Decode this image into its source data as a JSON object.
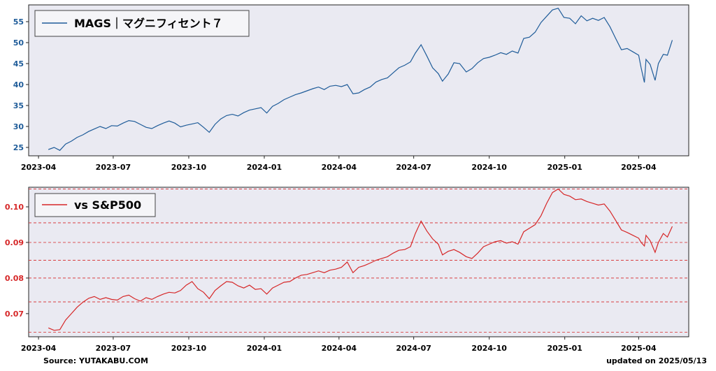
{
  "chart_data": [
    {
      "type": "line",
      "x_ticks": [
        "2023-04",
        "2023-07",
        "2023-10",
        "2024-01",
        "2024-04",
        "2024-07",
        "2024-10",
        "2025-01",
        "2025-04"
      ],
      "y_ticks": [
        25,
        30,
        35,
        40,
        45,
        50,
        55
      ],
      "ylim": [
        23,
        59
      ],
      "xlim": [
        "2023-03-20",
        "2025-06-01"
      ],
      "grid": false,
      "legend_position": "top-left",
      "series": [
        {
          "name": "MAGS｜マグニフィセント７",
          "color": "#1f5c99",
          "points": [
            [
              "2023-04-13",
              24.5
            ],
            [
              "2023-04-20",
              25.0
            ],
            [
              "2023-04-27",
              24.3
            ],
            [
              "2023-05-04",
              25.8
            ],
            [
              "2023-05-11",
              26.5
            ],
            [
              "2023-05-18",
              27.4
            ],
            [
              "2023-05-25",
              28.0
            ],
            [
              "2023-06-01",
              28.8
            ],
            [
              "2023-06-08",
              29.4
            ],
            [
              "2023-06-15",
              30.0
            ],
            [
              "2023-06-22",
              29.5
            ],
            [
              "2023-06-29",
              30.2
            ],
            [
              "2023-07-06",
              30.1
            ],
            [
              "2023-07-13",
              30.8
            ],
            [
              "2023-07-20",
              31.4
            ],
            [
              "2023-07-27",
              31.2
            ],
            [
              "2023-08-03",
              30.5
            ],
            [
              "2023-08-10",
              29.8
            ],
            [
              "2023-08-17",
              29.5
            ],
            [
              "2023-08-24",
              30.2
            ],
            [
              "2023-08-31",
              30.8
            ],
            [
              "2023-09-07",
              31.3
            ],
            [
              "2023-09-14",
              30.8
            ],
            [
              "2023-09-21",
              29.9
            ],
            [
              "2023-09-28",
              30.3
            ],
            [
              "2023-10-05",
              30.6
            ],
            [
              "2023-10-12",
              30.9
            ],
            [
              "2023-10-19",
              29.8
            ],
            [
              "2023-10-26",
              28.6
            ],
            [
              "2023-11-02",
              30.5
            ],
            [
              "2023-11-09",
              31.8
            ],
            [
              "2023-11-16",
              32.6
            ],
            [
              "2023-11-23",
              32.9
            ],
            [
              "2023-11-30",
              32.5
            ],
            [
              "2023-12-07",
              33.3
            ],
            [
              "2023-12-14",
              33.9
            ],
            [
              "2023-12-21",
              34.2
            ],
            [
              "2023-12-28",
              34.5
            ],
            [
              "2024-01-04",
              33.2
            ],
            [
              "2024-01-11",
              34.8
            ],
            [
              "2024-01-18",
              35.5
            ],
            [
              "2024-01-25",
              36.4
            ],
            [
              "2024-02-01",
              37.0
            ],
            [
              "2024-02-08",
              37.6
            ],
            [
              "2024-02-15",
              38.0
            ],
            [
              "2024-02-22",
              38.5
            ],
            [
              "2024-02-29",
              39.0
            ],
            [
              "2024-03-07",
              39.4
            ],
            [
              "2024-03-14",
              38.8
            ],
            [
              "2024-03-21",
              39.6
            ],
            [
              "2024-03-28",
              39.8
            ],
            [
              "2024-04-04",
              39.5
            ],
            [
              "2024-04-11",
              40.0
            ],
            [
              "2024-04-18",
              37.8
            ],
            [
              "2024-04-25",
              38.0
            ],
            [
              "2024-05-02",
              38.8
            ],
            [
              "2024-05-09",
              39.4
            ],
            [
              "2024-05-16",
              40.6
            ],
            [
              "2024-05-23",
              41.2
            ],
            [
              "2024-05-30",
              41.6
            ],
            [
              "2024-06-06",
              42.8
            ],
            [
              "2024-06-13",
              44.0
            ],
            [
              "2024-06-20",
              44.6
            ],
            [
              "2024-06-27",
              45.4
            ],
            [
              "2024-07-03",
              47.5
            ],
            [
              "2024-07-10",
              49.5
            ],
            [
              "2024-07-17",
              46.8
            ],
            [
              "2024-07-24",
              44.0
            ],
            [
              "2024-07-31",
              42.6
            ],
            [
              "2024-08-05",
              40.8
            ],
            [
              "2024-08-12",
              42.5
            ],
            [
              "2024-08-19",
              45.2
            ],
            [
              "2024-08-26",
              45.0
            ],
            [
              "2024-09-03",
              43.0
            ],
            [
              "2024-09-10",
              43.8
            ],
            [
              "2024-09-17",
              45.2
            ],
            [
              "2024-09-24",
              46.2
            ],
            [
              "2024-10-01",
              46.5
            ],
            [
              "2024-10-08",
              47.0
            ],
            [
              "2024-10-15",
              47.6
            ],
            [
              "2024-10-22",
              47.2
            ],
            [
              "2024-10-29",
              48.0
            ],
            [
              "2024-11-05",
              47.5
            ],
            [
              "2024-11-12",
              51.0
            ],
            [
              "2024-11-19",
              51.3
            ],
            [
              "2024-11-26",
              52.5
            ],
            [
              "2024-12-03",
              54.8
            ],
            [
              "2024-12-10",
              56.3
            ],
            [
              "2024-12-17",
              57.8
            ],
            [
              "2024-12-24",
              58.2
            ],
            [
              "2024-12-31",
              56.0
            ],
            [
              "2025-01-07",
              55.8
            ],
            [
              "2025-01-14",
              54.5
            ],
            [
              "2025-01-21",
              56.4
            ],
            [
              "2025-01-28",
              55.2
            ],
            [
              "2025-02-04",
              55.8
            ],
            [
              "2025-02-11",
              55.3
            ],
            [
              "2025-02-18",
              56.0
            ],
            [
              "2025-02-25",
              53.8
            ],
            [
              "2025-03-04",
              51.0
            ],
            [
              "2025-03-11",
              48.3
            ],
            [
              "2025-03-18",
              48.6
            ],
            [
              "2025-03-25",
              47.8
            ],
            [
              "2025-04-01",
              47.0
            ],
            [
              "2025-04-04",
              44.0
            ],
            [
              "2025-04-08",
              40.5
            ],
            [
              "2025-04-10",
              46.0
            ],
            [
              "2025-04-15",
              44.8
            ],
            [
              "2025-04-21",
              41.0
            ],
            [
              "2025-04-25",
              45.0
            ],
            [
              "2025-05-01",
              47.2
            ],
            [
              "2025-05-06",
              47.0
            ],
            [
              "2025-05-12",
              50.6
            ]
          ]
        }
      ]
    },
    {
      "type": "line",
      "x_ticks": [
        "2023-04",
        "2023-07",
        "2023-10",
        "2024-01",
        "2024-04",
        "2024-07",
        "2024-10",
        "2025-01",
        "2025-04"
      ],
      "y_ticks": [
        0.07,
        0.08,
        0.09,
        0.1
      ],
      "ylim": [
        0.0635,
        0.1055
      ],
      "xlim": [
        "2023-03-20",
        "2025-06-01"
      ],
      "reference_lines": [
        0.0648,
        0.0733,
        0.08,
        0.085,
        0.09,
        0.0955,
        0.105
      ],
      "reference_line_color": "#d62728",
      "legend_position": "top-left",
      "series": [
        {
          "name": "vs S&P500",
          "color": "#d62728",
          "points": [
            [
              "2023-04-13",
              0.066
            ],
            [
              "2023-04-20",
              0.0653
            ],
            [
              "2023-04-27",
              0.0655
            ],
            [
              "2023-05-04",
              0.0682
            ],
            [
              "2023-05-11",
              0.07
            ],
            [
              "2023-05-18",
              0.0718
            ],
            [
              "2023-05-25",
              0.0732
            ],
            [
              "2023-06-01",
              0.0743
            ],
            [
              "2023-06-08",
              0.0748
            ],
            [
              "2023-06-15",
              0.074
            ],
            [
              "2023-06-22",
              0.0745
            ],
            [
              "2023-06-29",
              0.074
            ],
            [
              "2023-07-06",
              0.0738
            ],
            [
              "2023-07-13",
              0.0748
            ],
            [
              "2023-07-20",
              0.0752
            ],
            [
              "2023-07-27",
              0.0742
            ],
            [
              "2023-08-03",
              0.0735
            ],
            [
              "2023-08-10",
              0.0745
            ],
            [
              "2023-08-17",
              0.074
            ],
            [
              "2023-08-24",
              0.0748
            ],
            [
              "2023-08-31",
              0.0755
            ],
            [
              "2023-09-07",
              0.076
            ],
            [
              "2023-09-14",
              0.0758
            ],
            [
              "2023-09-21",
              0.0765
            ],
            [
              "2023-09-28",
              0.078
            ],
            [
              "2023-10-05",
              0.079
            ],
            [
              "2023-10-12",
              0.077
            ],
            [
              "2023-10-19",
              0.076
            ],
            [
              "2023-10-26",
              0.0742
            ],
            [
              "2023-11-02",
              0.0765
            ],
            [
              "2023-11-09",
              0.0778
            ],
            [
              "2023-11-16",
              0.079
            ],
            [
              "2023-11-23",
              0.0788
            ],
            [
              "2023-11-30",
              0.0778
            ],
            [
              "2023-12-07",
              0.0772
            ],
            [
              "2023-12-14",
              0.078
            ],
            [
              "2023-12-21",
              0.0768
            ],
            [
              "2023-12-28",
              0.077
            ],
            [
              "2024-01-04",
              0.0755
            ],
            [
              "2024-01-11",
              0.0772
            ],
            [
              "2024-01-18",
              0.078
            ],
            [
              "2024-01-25",
              0.0788
            ],
            [
              "2024-02-01",
              0.079
            ],
            [
              "2024-02-08",
              0.08
            ],
            [
              "2024-02-15",
              0.0808
            ],
            [
              "2024-02-22",
              0.081
            ],
            [
              "2024-02-29",
              0.0815
            ],
            [
              "2024-03-07",
              0.082
            ],
            [
              "2024-03-14",
              0.0815
            ],
            [
              "2024-03-21",
              0.0822
            ],
            [
              "2024-03-28",
              0.0825
            ],
            [
              "2024-04-04",
              0.083
            ],
            [
              "2024-04-11",
              0.0845
            ],
            [
              "2024-04-18",
              0.0815
            ],
            [
              "2024-04-25",
              0.083
            ],
            [
              "2024-05-02",
              0.0835
            ],
            [
              "2024-05-09",
              0.0842
            ],
            [
              "2024-05-16",
              0.085
            ],
            [
              "2024-05-23",
              0.0855
            ],
            [
              "2024-05-30",
              0.086
            ],
            [
              "2024-06-06",
              0.087
            ],
            [
              "2024-06-13",
              0.0878
            ],
            [
              "2024-06-20",
              0.088
            ],
            [
              "2024-06-27",
              0.0888
            ],
            [
              "2024-07-03",
              0.0925
            ],
            [
              "2024-07-10",
              0.096
            ],
            [
              "2024-07-17",
              0.0932
            ],
            [
              "2024-07-24",
              0.091
            ],
            [
              "2024-07-31",
              0.0895
            ],
            [
              "2024-08-05",
              0.0865
            ],
            [
              "2024-08-12",
              0.0875
            ],
            [
              "2024-08-19",
              0.088
            ],
            [
              "2024-08-26",
              0.0872
            ],
            [
              "2024-09-03",
              0.086
            ],
            [
              "2024-09-10",
              0.0855
            ],
            [
              "2024-09-17",
              0.087
            ],
            [
              "2024-09-24",
              0.0888
            ],
            [
              "2024-10-01",
              0.0895
            ],
            [
              "2024-10-08",
              0.0902
            ],
            [
              "2024-10-15",
              0.0905
            ],
            [
              "2024-10-22",
              0.0898
            ],
            [
              "2024-10-29",
              0.0902
            ],
            [
              "2024-11-05",
              0.0895
            ],
            [
              "2024-11-12",
              0.093
            ],
            [
              "2024-11-19",
              0.094
            ],
            [
              "2024-11-26",
              0.095
            ],
            [
              "2024-12-03",
              0.0975
            ],
            [
              "2024-12-10",
              0.101
            ],
            [
              "2024-12-17",
              0.104
            ],
            [
              "2024-12-24",
              0.105
            ],
            [
              "2024-12-31",
              0.1035
            ],
            [
              "2025-01-07",
              0.103
            ],
            [
              "2025-01-14",
              0.102
            ],
            [
              "2025-01-21",
              0.1022
            ],
            [
              "2025-01-28",
              0.1015
            ],
            [
              "2025-02-04",
              0.101
            ],
            [
              "2025-02-11",
              0.1005
            ],
            [
              "2025-02-18",
              0.1008
            ],
            [
              "2025-02-25",
              0.0988
            ],
            [
              "2025-03-04",
              0.0962
            ],
            [
              "2025-03-11",
              0.0935
            ],
            [
              "2025-03-18",
              0.0928
            ],
            [
              "2025-03-25",
              0.092
            ],
            [
              "2025-04-01",
              0.0912
            ],
            [
              "2025-04-04",
              0.09
            ],
            [
              "2025-04-08",
              0.089
            ],
            [
              "2025-04-10",
              0.092
            ],
            [
              "2025-04-15",
              0.0905
            ],
            [
              "2025-04-21",
              0.0872
            ],
            [
              "2025-04-25",
              0.09
            ],
            [
              "2025-05-01",
              0.0925
            ],
            [
              "2025-05-06",
              0.0915
            ],
            [
              "2025-05-12",
              0.0945
            ]
          ]
        }
      ]
    }
  ],
  "footer": {
    "source": "Source: YUTAKABU.COM",
    "updated": "updated on 2025/05/13"
  }
}
